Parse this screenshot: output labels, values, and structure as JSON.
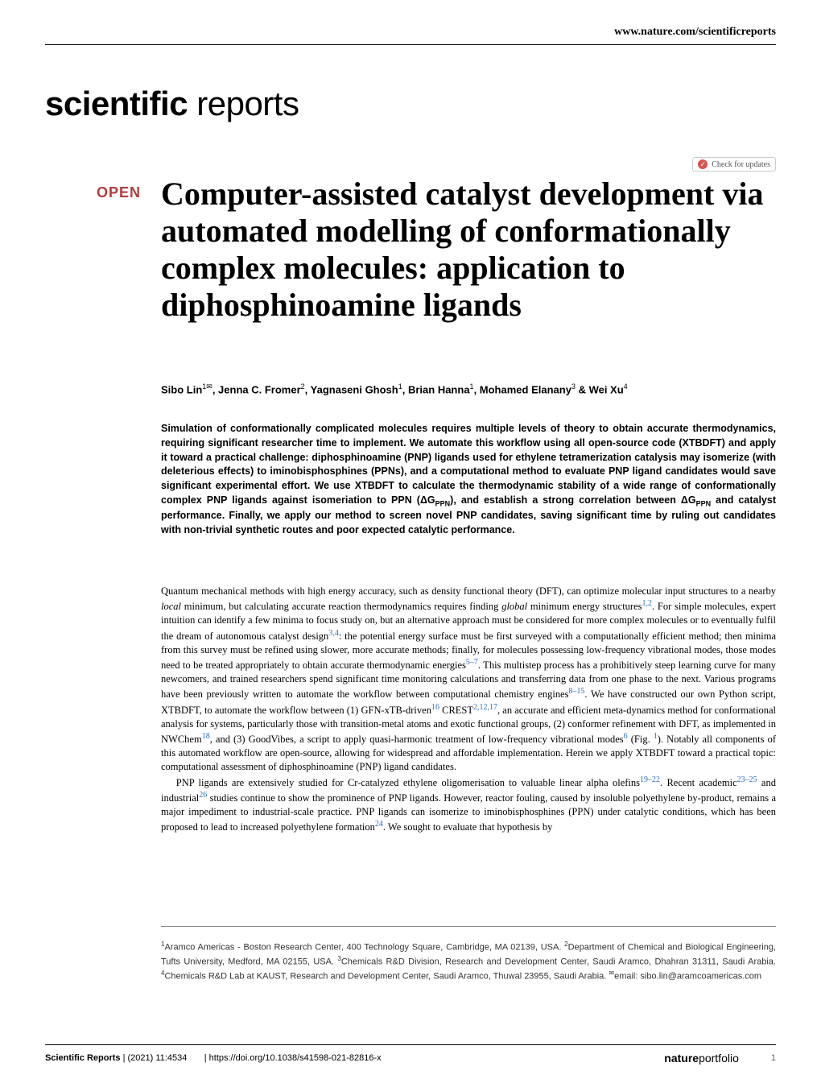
{
  "header": {
    "url": "www.nature.com/scientificreports",
    "journal_brand_bold": "scientific",
    "journal_brand_light": " reports",
    "check_updates_label": "Check for updates"
  },
  "article": {
    "open_badge": "OPEN",
    "title": "Computer-assisted catalyst development via automated modelling of conformationally complex molecules: application to diphosphinoamine ligands",
    "authors_html": "Sibo Lin<sup>1✉</sup>, Jenna C. Fromer<sup>2</sup>, Yagnaseni Ghosh<sup>1</sup>, Brian Hanna<sup>1</sup>, Mohamed Elanany<sup>3</sup> & Wei Xu<sup>4</sup>",
    "abstract": "Simulation of conformationally complicated molecules requires multiple levels of theory to obtain accurate thermodynamics, requiring significant researcher time to implement. We automate this workflow using all open-source code (XTBDFT) and apply it toward a practical challenge: diphosphinoamine (PNP) ligands used for ethylene tetramerization catalysis may isomerize (with deleterious effects) to iminobisphosphines (PPNs), and a computational method to evaluate PNP ligand candidates would save significant experimental effort. We use XTBDFT to calculate the thermodynamic stability of a wide range of conformationally complex PNP ligands against isomeriation to PPN (ΔG<sub>PPN</sub>), and establish a strong correlation between ΔG<sub>PPN</sub> and catalyst performance. Finally, we apply our method to screen novel PNP candidates, saving significant time by ruling out candidates with non-trivial synthetic routes and poor expected catalytic performance."
  },
  "body": {
    "para1": "Quantum mechanical methods with high energy accuracy, such as density functional theory (DFT), can optimize molecular input structures to a nearby <em>local</em> minimum, but calculating accurate reaction thermodynamics requires finding <em>global</em> minimum energy structures<span class='ref-link'>1,2</span>. For simple molecules, expert intuition can identify a few minima to focus study on, but an alternative approach must be considered for more complex molecules or to eventually fulfil the dream of autonomous catalyst design<span class='ref-link'>3,4</span>: the potential energy surface must be first surveyed with a computationally efficient method; then minima from this survey must be refined using slower, more accurate methods; finally, for molecules possessing low-frequency vibrational modes, those modes need to be treated appropriately to obtain accurate thermodynamic energies<span class='ref-link'>5–7</span>. This multistep process has a prohibitively steep learning curve for many newcomers, and trained researchers spend significant time monitoring calculations and transferring data from one phase to the next. Various programs have been previously written to automate the workflow between computational chemistry engines<span class='ref-link'>8–15</span>. We have constructed our own Python script, XTBDFT, to automate the workflow between (1) GFN-xTB-driven<span class='ref-link'>16</span> CREST<span class='ref-link'>2,12,17</span>, an accurate and efficient meta-dynamics method for conformational analysis for systems, particularly those with transition-metal atoms and exotic functional groups, (2) conformer refinement with DFT, as implemented in NWChem<span class='ref-link'>18</span>, and (3) GoodVibes, a script to apply quasi-harmonic treatment of low-frequency vibrational modes<span class='ref-link'>6</span> (Fig. <span class='ref-link'>1</span>). Notably all components of this automated workflow are open-source, allowing for widespread and affordable implementation. Herein we apply XTBDFT toward a practical topic: computational assessment of diphosphinoamine (PNP) ligand candidates.",
    "para2": "PNP ligands are extensively studied for Cr-catalyzed ethylene oligomerisation to valuable linear alpha olefins<span class='ref-link'>19–22</span>. Recent academic<span class='ref-link'>23–25</span> and industrial<span class='ref-link'>26</span> studies continue to show the prominence of PNP ligands. However, reactor fouling, caused by insoluble polyethylene by-product, remains a major impediment to industrial-scale practice. PNP ligands can isomerize to iminobisphosphines (PPN) under catalytic conditions, which has been proposed to lead to increased polyethylene formation<span class='ref-link'>24</span>. We sought to evaluate that hypothesis by"
  },
  "affiliations": "<sup>1</sup>Aramco Americas - Boston Research Center, 400 Technology Square, Cambridge, MA 02139, USA. <sup>2</sup>Department of Chemical and Biological Engineering, Tufts University, Medford, MA 02155, USA. <sup>3</sup>Chemicals R&D Division, Research and Development Center, Saudi Aramco, Dhahran 31311, Saudi Arabia. <sup>4</sup>Chemicals R&D Lab at KAUST, Research and Development Center, Saudi Aramco, Thuwal 23955, Saudi Arabia. <sup>✉</sup>email: sibo.lin@aramcoamericas.com",
  "footer": {
    "journal": "Scientific Reports",
    "citation": "(2021) 11:4534",
    "doi": "https://doi.org/10.1038/s41598-021-82816-x",
    "portfolio_bold": "nature",
    "portfolio_light": "portfolio",
    "page": "1"
  },
  "colors": {
    "open_badge": "#b33c3c",
    "ref_link": "#2a6ebb",
    "check_icon_bg": "#d9534f",
    "text": "#000000",
    "background": "#ffffff"
  }
}
